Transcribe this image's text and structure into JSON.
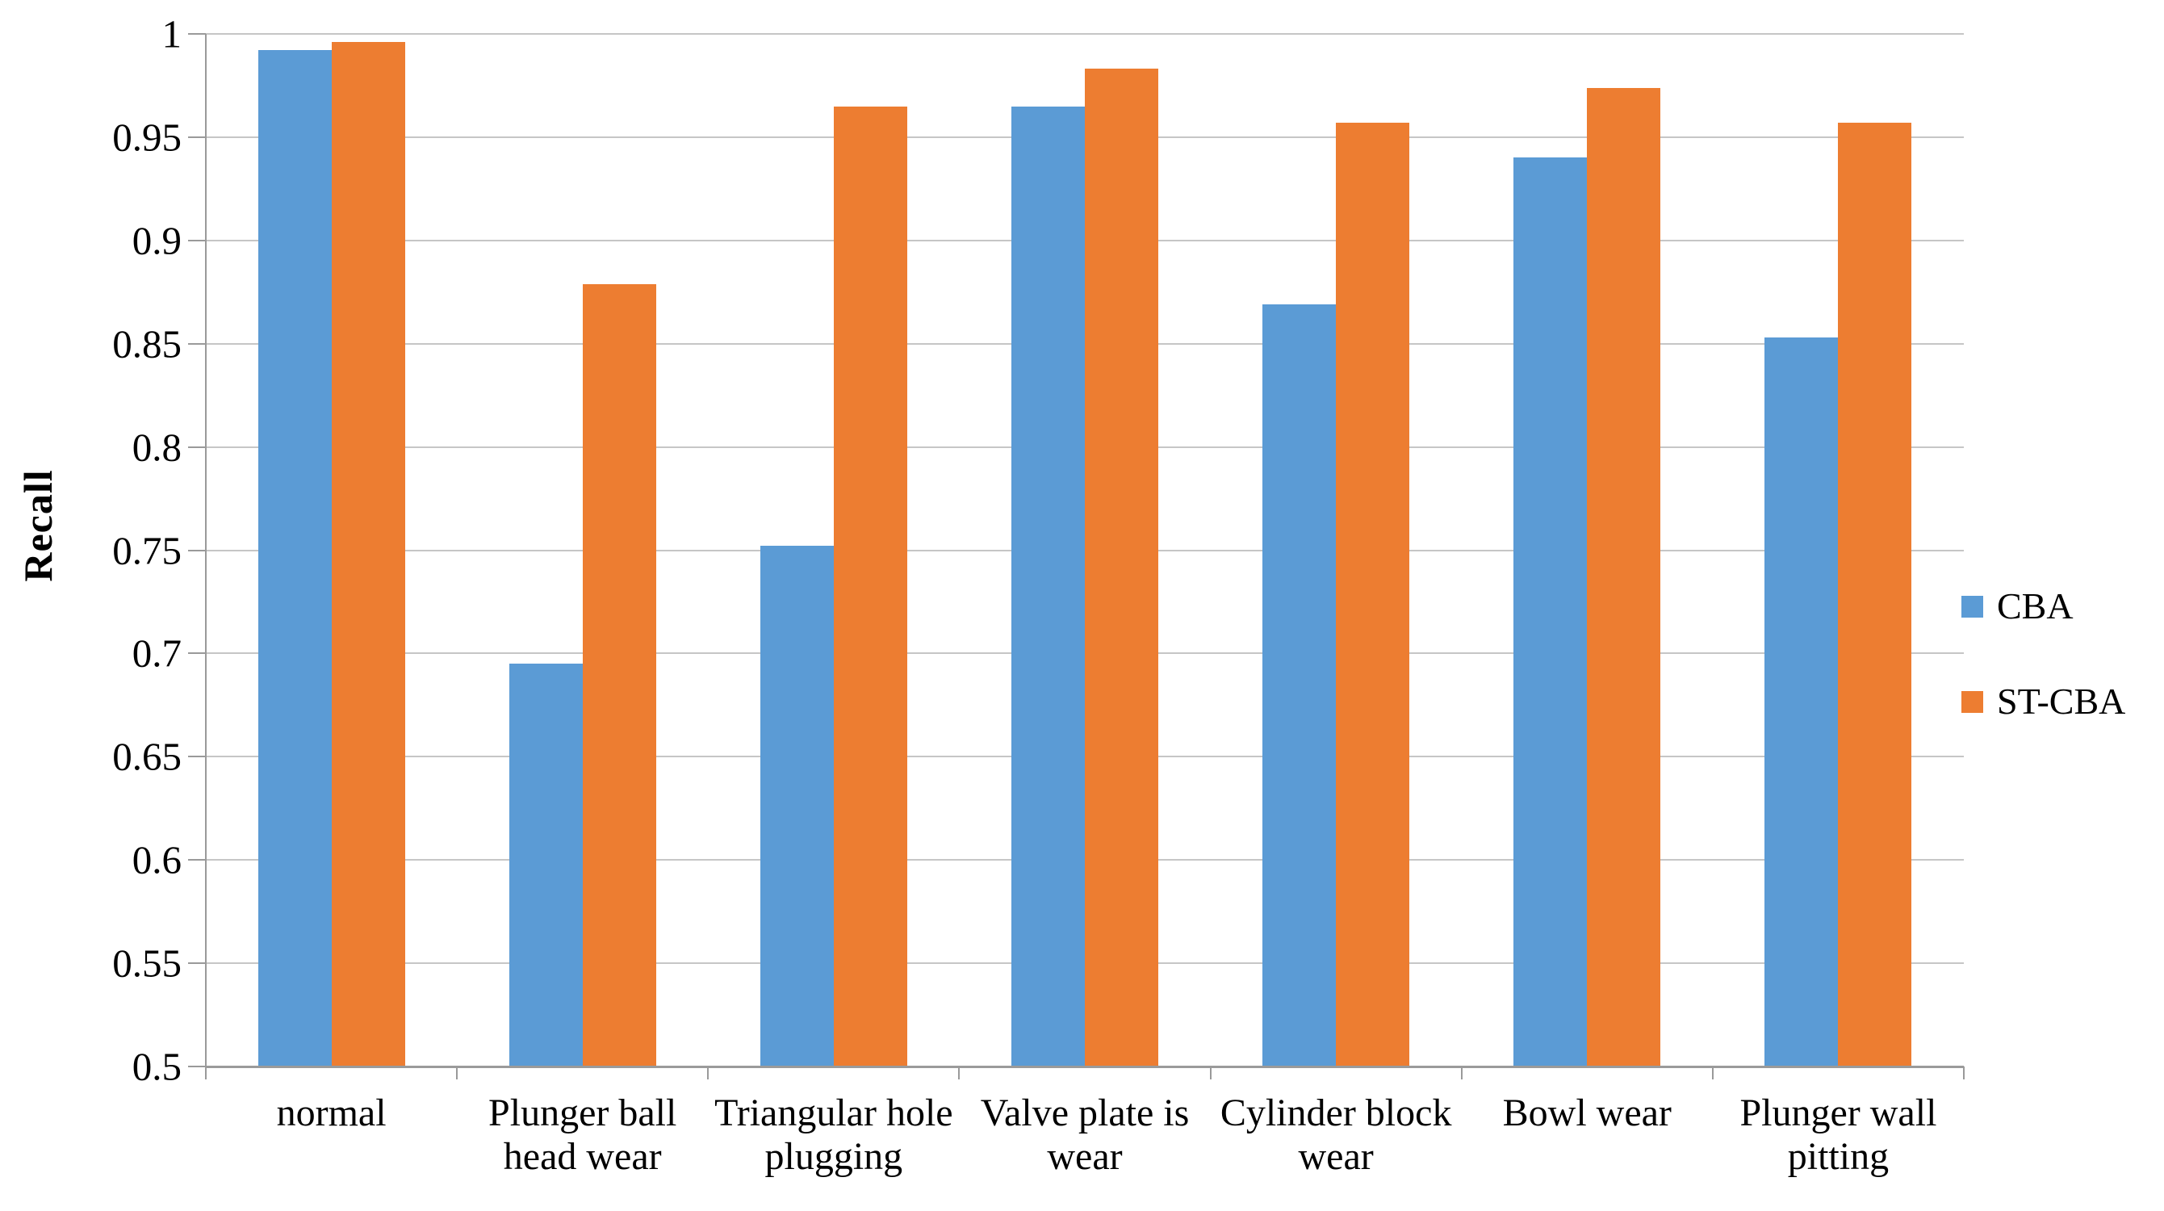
{
  "chart_data": {
    "type": "bar",
    "title": "",
    "xlabel": "",
    "ylabel": "Recall",
    "categories": [
      "normal",
      "Plunger ball\nhead wear",
      "Triangular hole\nplugging",
      "Valve plate is\nwear",
      "Cylinder block\nwear",
      "Bowl wear",
      "Plunger wall\npitting"
    ],
    "series": [
      {
        "name": "CBA",
        "color": "#5B9BD5",
        "values": [
          0.992,
          0.695,
          0.752,
          0.965,
          0.869,
          0.94,
          0.853
        ]
      },
      {
        "name": "ST-CBA",
        "color": "#ED7D31",
        "values": [
          0.996,
          0.879,
          0.965,
          0.983,
          0.957,
          0.974,
          0.957
        ]
      }
    ],
    "ylim": [
      0.5,
      1.0
    ],
    "ytick_step": 0.05,
    "ytick_labels": [
      "0.5",
      "0.55",
      "0.6",
      "0.65",
      "0.7",
      "0.75",
      "0.8",
      "0.85",
      "0.9",
      "0.95",
      "1"
    ],
    "grid": "horizontal",
    "legend_position": "right",
    "colors": {
      "gridline": "#c6c6c6",
      "axis": "#9a9a9a",
      "text": "#000000",
      "background": "#ffffff"
    }
  }
}
